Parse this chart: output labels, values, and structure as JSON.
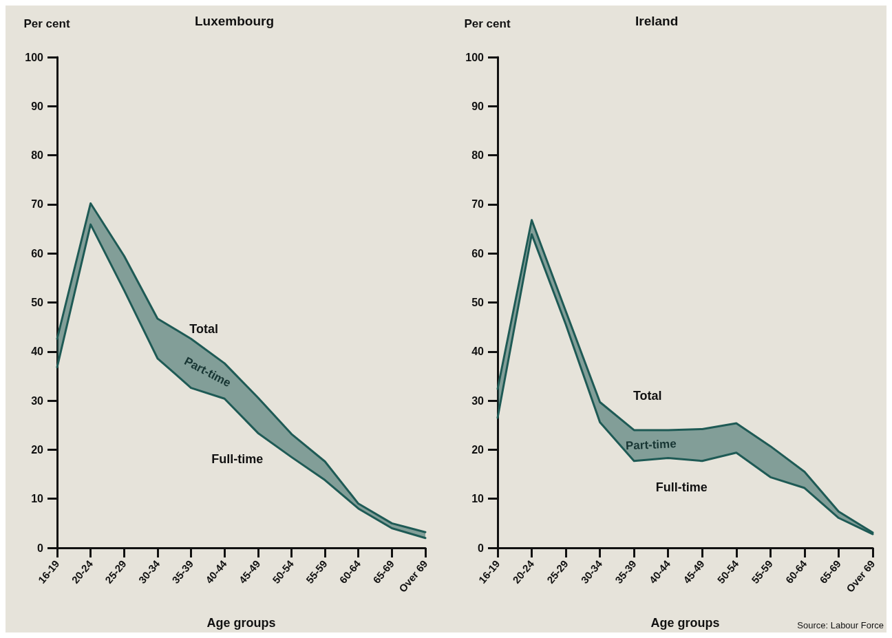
{
  "chart_data": [
    {
      "type": "line",
      "title": "Luxembourg",
      "ylabel": "Per cent",
      "xlabel": "Age groups",
      "categories": [
        "16-19",
        "20-24",
        "25-29",
        "30-34",
        "35-39",
        "40-44",
        "45-49",
        "50-54",
        "55-59",
        "60-64",
        "65-69",
        "Over 69"
      ],
      "series": [
        {
          "name": "Full-time",
          "color": "#1e5a55",
          "values": [
            36.8,
            65.9,
            52.5,
            38.6,
            32.6,
            30.4,
            23.4,
            18.5,
            13.8,
            8,
            4,
            2
          ]
        },
        {
          "name": "Total",
          "color": "#1e5a55",
          "values": [
            42.6,
            70.2,
            59.5,
            46.7,
            42.6,
            37.6,
            30.6,
            23.2,
            17.6,
            9,
            5,
            3.2
          ],
          "lower": [
            36.8,
            65.9,
            52.5,
            38.6,
            32.6,
            30.4,
            23.4,
            18.5,
            13.8,
            8,
            4,
            2
          ],
          "upper": [
            42.6,
            70.2,
            59.5,
            46.7,
            42.6,
            37.6,
            30.6,
            23.2,
            17.6,
            9,
            5,
            3.2
          ]
        }
      ],
      "ylim": [
        0,
        100
      ],
      "yticks": [
        0,
        10,
        20,
        30,
        40,
        50,
        60,
        70,
        80,
        90,
        100
      ],
      "grid": false,
      "legend": false,
      "marker": "none",
      "annotations": [
        "Part-time"
      ]
    },
    {
      "type": "line",
      "title": "Ireland",
      "ylabel": "Per cent",
      "xlabel": "Age groups",
      "categories": [
        "16-19",
        "20-24",
        "25-29",
        "30-34",
        "35-39",
        "40-44",
        "45-49",
        "50-54",
        "55-59",
        "60-64",
        "65-69",
        "Over 69"
      ],
      "series": [
        {
          "name": "Full-time",
          "color": "#1e5a55",
          "values": [
            26.5,
            63.9,
            45.5,
            25.6,
            17.7,
            18.3,
            17.7,
            19.4,
            14.4,
            12.2,
            6.1,
            2.8
          ]
        },
        {
          "name": "Total",
          "color": "#1e5a55",
          "values": [
            32.4,
            66.8,
            48.2,
            29.7,
            24,
            24,
            24.2,
            25.4,
            20.7,
            15.5,
            7.4,
            3.1
          ],
          "lower": [
            26.5,
            63.9,
            45.5,
            25.6,
            17.7,
            18.3,
            17.7,
            19.4,
            14.4,
            12.2,
            6.1,
            2.8
          ],
          "upper": [
            32.4,
            66.8,
            48.2,
            29.7,
            24,
            24,
            24.2,
            25.4,
            20.7,
            15.5,
            7.4,
            3.1
          ]
        }
      ],
      "ylim": [
        0,
        100
      ],
      "yticks": [
        0,
        10,
        20,
        30,
        40,
        50,
        60,
        70,
        80,
        90,
        100
      ],
      "grid": false,
      "legend": false,
      "marker": "none",
      "annotations": [
        "Part-time",
        "Source: Labour Force"
      ]
    }
  ]
}
